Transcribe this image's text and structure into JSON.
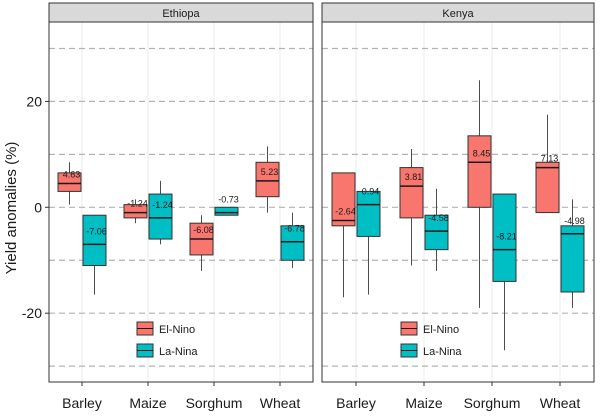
{
  "chart_data": {
    "type": "boxplot",
    "ylabel": "Yield anomalies (%)",
    "ylim": [
      -33,
      35
    ],
    "yticks": [
      -20,
      0,
      20
    ],
    "dashed_lines": [
      -30,
      -20,
      -10,
      0,
      10,
      20,
      30
    ],
    "categories": [
      "Barley",
      "Maize",
      "Sorghum",
      "Wheat"
    ],
    "legend": [
      {
        "name": "El-Nino",
        "color": "#f8766d"
      },
      {
        "name": "La-Nina",
        "color": "#00bfc4"
      }
    ],
    "panels": [
      {
        "title": "Ethiopa",
        "groups": [
          {
            "category": "Barley",
            "el_nino": {
              "min": 0.5,
              "q1": 3,
              "median": 4.5,
              "q3": 6.5,
              "max": 8.5,
              "label": "4.63"
            },
            "la_nina": {
              "min": -16.5,
              "q1": -11,
              "median": -7,
              "q3": -1.5,
              "max": -1.5,
              "label": "-7.06"
            }
          },
          {
            "category": "Maize",
            "el_nino": {
              "min": -3,
              "q1": -2,
              "median": -1,
              "q3": 0.5,
              "max": 1.5,
              "label": "-1.24"
            },
            "la_nina": {
              "min": -7,
              "q1": -6,
              "median": -2,
              "q3": 2.5,
              "max": 5,
              "label": "-1.24"
            }
          },
          {
            "category": "Sorghum",
            "el_nino": {
              "min": -12,
              "q1": -9,
              "median": -6,
              "q3": -3,
              "max": -1.5,
              "label": "-6.08"
            },
            "la_nina": {
              "min": -1.5,
              "q1": -1.5,
              "median": -1,
              "q3": 0,
              "max": 0,
              "label": "-0.73"
            }
          },
          {
            "category": "Wheat",
            "el_nino": {
              "min": -1,
              "q1": 2,
              "median": 5,
              "q3": 8.5,
              "max": 11.5,
              "label": "5.23"
            },
            "la_nina": {
              "min": -11.5,
              "q1": -10,
              "median": -6.5,
              "q3": -3.5,
              "max": -1,
              "label": "-6.78"
            }
          }
        ]
      },
      {
        "title": "Kenya",
        "groups": [
          {
            "category": "Barley",
            "el_nino": {
              "min": -17,
              "q1": -3.5,
              "median": -2.5,
              "q3": 6.5,
              "max": 6.5,
              "label": "-2.64"
            },
            "la_nina": {
              "min": -16.5,
              "q1": -5.5,
              "median": 0.5,
              "q3": 3,
              "max": 3,
              "label": "0.94"
            }
          },
          {
            "category": "Maize",
            "el_nino": {
              "min": -11,
              "q1": -2,
              "median": 4,
              "q3": 7.5,
              "max": 11,
              "label": "3.81"
            },
            "la_nina": {
              "min": -12,
              "q1": -8,
              "median": -4.5,
              "q3": -1.5,
              "max": 3.5,
              "label": "-4.58"
            }
          },
          {
            "category": "Sorghum",
            "el_nino": {
              "min": -19,
              "q1": 0,
              "median": 8.5,
              "q3": 13.5,
              "max": 24,
              "label": "8.45"
            },
            "la_nina": {
              "min": -27,
              "q1": -14,
              "median": -8,
              "q3": 2.5,
              "max": 2.5,
              "label": "-8.21"
            }
          },
          {
            "category": "Wheat",
            "el_nino": {
              "min": -1,
              "q1": -1,
              "median": 7.5,
              "q3": 8.5,
              "max": 17.5,
              "label": "7.13"
            },
            "la_nina": {
              "min": -19,
              "q1": -16,
              "median": -5,
              "q3": -3.5,
              "max": 1.5,
              "label": "-4.98"
            }
          }
        ]
      }
    ]
  }
}
